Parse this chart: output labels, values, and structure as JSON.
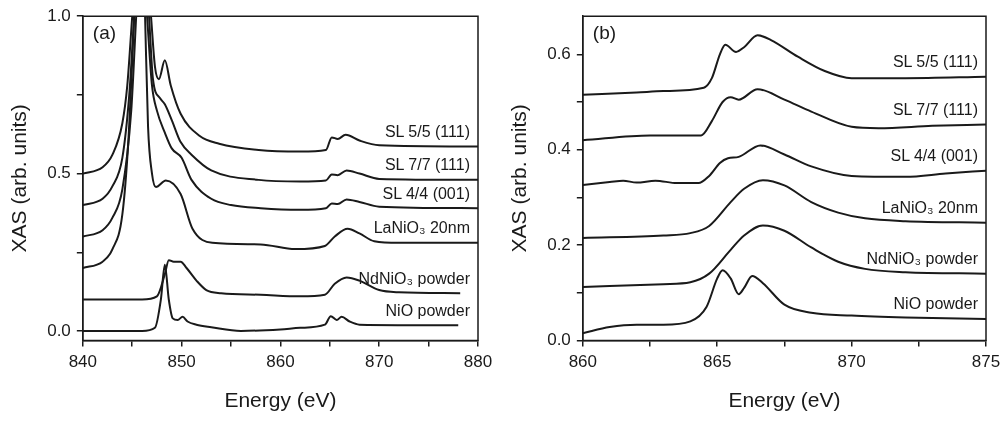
{
  "chart_data": [
    {
      "type": "line",
      "xlabel": "Energy (eV)",
      "ylabel": "XAS (arb. units)",
      "annotations": [
        "(a)"
      ],
      "grid": false,
      "legend": false,
      "xlim": [
        840,
        880
      ],
      "xticks": [
        840,
        {
          "value": 845,
          "label": null
        },
        850,
        {
          "value": 855,
          "label": null
        },
        860,
        {
          "value": 865,
          "label": null
        },
        870,
        {
          "value": 875,
          "label": null
        },
        880
      ],
      "ylim": [
        -0.03,
        1.0
      ],
      "yticks": [
        {
          "value": 0,
          "label": "0.0"
        },
        {
          "value": 0.25,
          "label": null
        },
        0.5,
        {
          "value": 0.75,
          "label": null
        },
        {
          "value": 1,
          "label": "1.0"
        }
      ],
      "series": [
        {
          "name": "SL 5/5 (111)",
          "color": "#1a1a1a",
          "x": [
            840,
            842,
            843,
            844,
            844.5,
            845,
            846,
            846.9,
            847.3,
            847.7,
            848.3,
            848.9,
            849.9,
            851.8,
            853.8,
            857.8,
            862,
            864.6,
            865.2,
            865.8,
            866.6,
            868,
            870,
            880
          ],
          "values": [
            0.5,
            0.52,
            0.56,
            0.66,
            0.78,
            1.0,
            null,
            1.0,
            0.84,
            0.8,
            0.86,
            0.78,
            0.69,
            0.62,
            0.595,
            0.575,
            0.57,
            0.575,
            0.615,
            0.61,
            0.623,
            0.605,
            0.59,
            0.586
          ]
        },
        {
          "name": "SL 7/7 (111)",
          "color": "#1a1a1a",
          "x": [
            840,
            842,
            843,
            844,
            844.7,
            845.2,
            846,
            846.7,
            847.1,
            847.8,
            848.3,
            849,
            849.9,
            851,
            853,
            857.8,
            862,
            864.6,
            865.2,
            865.8,
            866.7,
            868,
            870,
            880
          ],
          "values": [
            0.4,
            0.42,
            0.46,
            0.55,
            0.75,
            1.0,
            null,
            1.0,
            0.8,
            0.74,
            0.72,
            0.67,
            0.6,
            0.56,
            0.51,
            0.48,
            0.475,
            0.478,
            0.497,
            0.495,
            0.51,
            0.5,
            0.483,
            0.48
          ]
        },
        {
          "name": "SL 4/4 (001)",
          "color": "#1a1a1a",
          "x": [
            840,
            842,
            843,
            844,
            844.9,
            845.4,
            846,
            846.5,
            847,
            847.5,
            848.3,
            849,
            850,
            851,
            853,
            855,
            858,
            862,
            864.6,
            865.2,
            865.8,
            866.7,
            868,
            870,
            880
          ],
          "values": [
            0.3,
            0.32,
            0.36,
            0.45,
            0.7,
            1.0,
            null,
            1.0,
            0.78,
            0.7,
            0.63,
            0.58,
            0.55,
            0.48,
            0.42,
            0.4,
            0.39,
            0.385,
            0.39,
            0.405,
            0.403,
            0.418,
            0.41,
            0.395,
            0.39
          ]
        },
        {
          "name": "LaNiO₃ 20nm",
          "color": "#1a1a1a",
          "x": [
            840,
            842,
            843,
            844,
            844.6,
            845.2,
            846,
            846.3,
            846.6,
            847,
            847.4,
            848.4,
            849.9,
            851.1,
            853.1,
            858,
            861.5,
            864.5,
            865.5,
            866.8,
            868,
            869.5,
            872,
            880
          ],
          "values": [
            0.2,
            0.22,
            0.26,
            0.37,
            0.6,
            1.0,
            null,
            1.0,
            0.65,
            0.5,
            0.457,
            0.478,
            0.435,
            0.325,
            0.28,
            0.275,
            0.26,
            0.27,
            0.3,
            0.325,
            0.31,
            0.285,
            0.28,
            0.28
          ]
        },
        {
          "name": "NdNiO₃ powder",
          "color": "#1a1a1a",
          "x": [
            840,
            846,
            847.5,
            848.3,
            848.7,
            849.2,
            849.9,
            850.5,
            851.5,
            852.5,
            854,
            858,
            862,
            864.5,
            865.5,
            866.7,
            868,
            870,
            872,
            878.2
          ],
          "values": [
            0.1,
            0.1,
            0.11,
            0.18,
            0.225,
            0.22,
            0.22,
            0.2,
            0.16,
            0.13,
            0.12,
            0.115,
            0.11,
            0.115,
            0.15,
            0.17,
            0.16,
            0.13,
            0.123,
            0.12
          ]
        },
        {
          "name": "NiO powder",
          "color": "#1a1a1a",
          "x": [
            840,
            846,
            847.3,
            847.9,
            848.3,
            848.7,
            849.1,
            849.6,
            850.1,
            850.6,
            851.5,
            853,
            856,
            860,
            862,
            864.5,
            865.1,
            865.7,
            866.2,
            867,
            868,
            878
          ],
          "values": [
            0,
            0,
            0.01,
            0.1,
            0.21,
            0.1,
            0.04,
            0.035,
            0.045,
            0.03,
            0.02,
            0.012,
            0.0,
            0.005,
            0.01,
            0.02,
            0.047,
            0.035,
            0.045,
            0.03,
            0.02,
            0.018
          ]
        }
      ]
    },
    {
      "type": "line",
      "xlabel": "Energy (eV)",
      "ylabel": "XAS (arb. units)",
      "annotations": [
        "(b)"
      ],
      "grid": false,
      "legend": false,
      "xlim": [
        860,
        875
      ],
      "xticks": [
        860,
        {
          "value": 862.5,
          "label": null
        },
        865,
        {
          "value": 867.5,
          "label": null
        },
        870,
        {
          "value": 872.5,
          "label": null
        },
        875
      ],
      "ylim": [
        0,
        0.68
      ],
      "yticks": [
        {
          "value": 0,
          "label": "0.0"
        },
        {
          "value": 0.1,
          "label": null
        },
        0.2,
        {
          "value": 0.3,
          "label": null
        },
        0.4,
        {
          "value": 0.5,
          "label": null
        },
        0.6
      ],
      "series": [
        {
          "name": "SL 5/5 (111)",
          "color": "#1a1a1a",
          "x": [
            860,
            862,
            863,
            864.5,
            864.8,
            865.1,
            865.3,
            865.7,
            866,
            866.5,
            867,
            868,
            869,
            870,
            872,
            875
          ],
          "values": [
            0.515,
            0.52,
            0.523,
            0.53,
            0.55,
            0.6,
            0.62,
            0.605,
            0.615,
            0.64,
            0.63,
            0.595,
            0.565,
            0.55,
            0.55,
            0.553
          ]
        },
        {
          "name": "SL 7/7 (111)",
          "color": "#1a1a1a",
          "x": [
            860,
            862.5,
            864.4,
            864.8,
            865.2,
            865.5,
            865.8,
            866.5,
            867.5,
            868.5,
            870,
            871,
            873,
            875
          ],
          "values": [
            0.42,
            0.43,
            0.43,
            0.46,
            0.5,
            0.51,
            0.505,
            0.527,
            0.505,
            0.48,
            0.448,
            0.445,
            0.45,
            0.453
          ]
        },
        {
          "name": "SL 4/4 (001)",
          "color": "#1a1a1a",
          "x": [
            860,
            861,
            861.5,
            862,
            862.7,
            863.5,
            864.3,
            864.7,
            865.1,
            865.4,
            865.8,
            866.6,
            867.5,
            868.5,
            870,
            872,
            873.5,
            875
          ],
          "values": [
            0.326,
            0.332,
            0.335,
            0.331,
            0.335,
            0.33,
            0.33,
            0.345,
            0.372,
            0.382,
            0.385,
            0.409,
            0.39,
            0.365,
            0.345,
            0.343,
            0.35,
            0.356
          ]
        },
        {
          "name": "LaNiO₃ 20nm",
          "color": "#1a1a1a",
          "x": [
            860,
            863,
            864,
            864.7,
            865.5,
            866,
            866.7,
            867.5,
            868.5,
            869.5,
            870.5,
            872,
            875
          ],
          "values": [
            0.215,
            0.22,
            0.225,
            0.24,
            0.29,
            0.318,
            0.336,
            0.325,
            0.29,
            0.268,
            0.256,
            0.25,
            0.247
          ]
        },
        {
          "name": "NdNiO₃ powder",
          "color": "#1a1a1a",
          "x": [
            860,
            863,
            864,
            864.7,
            865.5,
            866,
            866.7,
            867.5,
            868.5,
            869.5,
            870.5,
            872,
            875
          ],
          "values": [
            0.112,
            0.118,
            0.122,
            0.14,
            0.19,
            0.22,
            0.241,
            0.23,
            0.195,
            0.165,
            0.15,
            0.143,
            0.14
          ]
        },
        {
          "name": "NiO powder",
          "color": "#1a1a1a",
          "x": [
            860,
            861,
            862,
            863,
            864,
            864.6,
            865,
            865.2,
            865.5,
            865.8,
            866,
            866.3,
            866.7,
            867.5,
            868.5,
            870,
            872,
            875
          ],
          "values": [
            0.015,
            0.028,
            0.033,
            0.033,
            0.04,
            0.07,
            0.13,
            0.147,
            0.13,
            0.097,
            0.11,
            0.135,
            0.12,
            0.075,
            0.058,
            0.052,
            0.048,
            0.045
          ]
        }
      ]
    }
  ]
}
